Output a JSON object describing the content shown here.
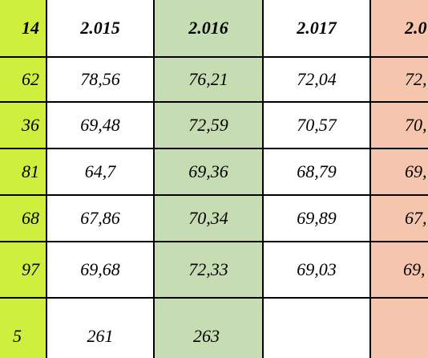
{
  "table": {
    "headers": [
      "14",
      "2.015",
      "2.016",
      "2.017",
      "2.0"
    ],
    "rows": [
      [
        "62",
        "78,56",
        "76,21",
        "72,04",
        "72,"
      ],
      [
        "36",
        "69,48",
        "72,59",
        "70,57",
        "70,"
      ],
      [
        "81",
        "64,7",
        "69,36",
        "68,79",
        "69,"
      ],
      [
        "68",
        "67,86",
        "70,34",
        "69,89",
        "67,"
      ],
      [
        "97",
        "69,68",
        "72,33",
        "69,03",
        "69,"
      ],
      [
        "5",
        "261",
        "263",
        "",
        ""
      ]
    ]
  },
  "colors": {
    "col_2014_bg": "#cfee3e",
    "col_2016_bg": "#c6ddb3",
    "col_2018_bg": "#f5c6ad",
    "border": "#000000"
  }
}
